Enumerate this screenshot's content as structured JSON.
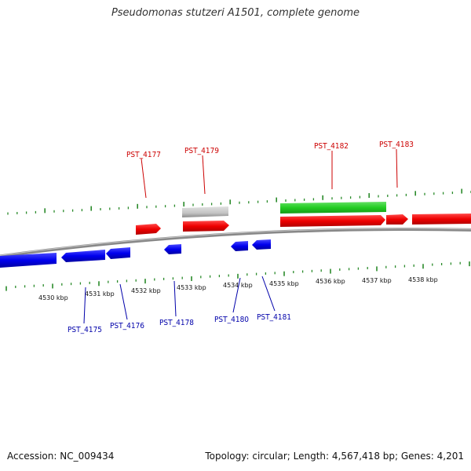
{
  "title": "Pseudomonas stutzeri A1501, complete genome",
  "footer": {
    "accession": "Accession: NC_009434",
    "topology": "Topology: circular; Length: 4,567,418 bp; Genes: 4,201"
  },
  "colors": {
    "forward": "#ff0000",
    "reverse": "#0000ff",
    "rna": "#33cc33",
    "other": "#c0c0c0",
    "tick": "#2a8a2a",
    "backbone": "#777777",
    "label_forward": "#cc0000",
    "label_reverse": "#0000aa"
  },
  "kbp_labels": [
    "4530 kbp",
    "4531 kbp",
    "4532 kbp",
    "4533 kbp",
    "4534 kbp",
    "4535 kbp",
    "4536 kbp",
    "4537 kbp",
    "4538 kbp"
  ],
  "gene_labels_top": [
    {
      "name": "PST_4177"
    },
    {
      "name": "PST_4179"
    },
    {
      "name": "PST_4182"
    },
    {
      "name": "PST_4183"
    }
  ],
  "gene_labels_bottom": [
    {
      "name": "PST_4175"
    },
    {
      "name": "PST_4176"
    },
    {
      "name": "PST_4178"
    },
    {
      "name": "PST_4180"
    },
    {
      "name": "PST_4181"
    }
  ]
}
